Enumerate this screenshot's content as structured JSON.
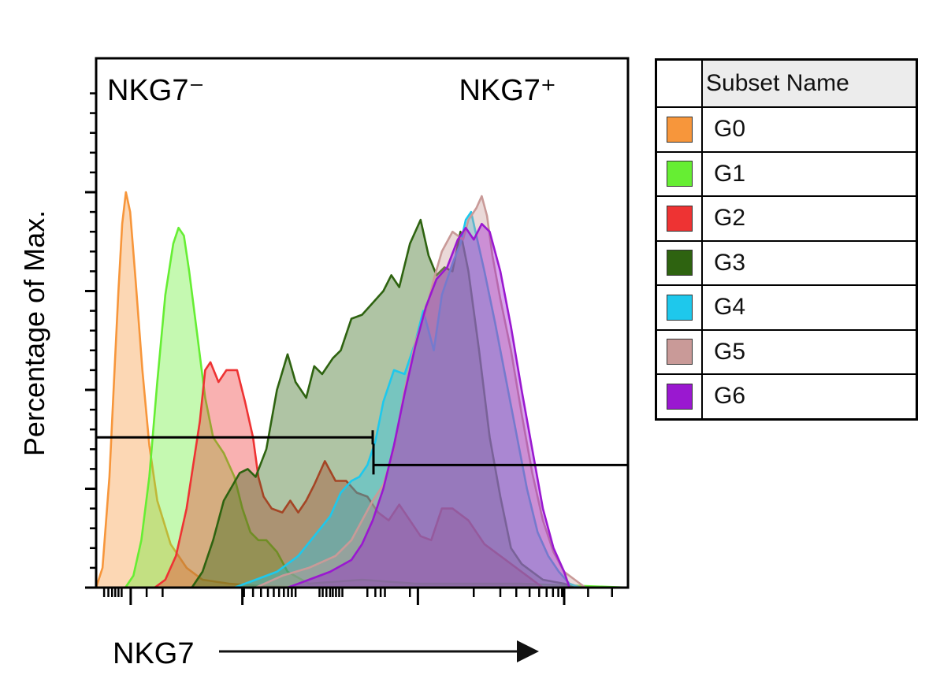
{
  "chart_data": {
    "type": "area",
    "title": "",
    "xlabel": "NKG7",
    "ylabel": "Percentage of Max.",
    "x_scale": "log",
    "xlim": [
      0,
      100
    ],
    "ylim": [
      0,
      100
    ],
    "grid": false,
    "legend_placement": "right",
    "annotations": [
      {
        "text": "NKG7⁻",
        "position": "top-left"
      },
      {
        "text": "NKG7⁺",
        "position": "top-right"
      }
    ],
    "gates": [
      {
        "label": "NKG7⁻",
        "x_range": [
          0,
          52
        ],
        "y": 38
      },
      {
        "label": "NKG7⁺",
        "x_range": [
          52,
          100
        ],
        "y": 31
      }
    ],
    "legend_header": "Subset Name",
    "series": [
      {
        "name": "G0",
        "color": "#f7963b",
        "x": [
          0,
          1.2,
          2.5,
          3.5,
          4.2,
          4.9,
          5.6,
          6.4,
          7.4,
          8.7,
          10,
          11.5,
          14,
          17,
          20,
          25,
          30,
          40,
          60,
          80,
          100
        ],
        "y": [
          0,
          5,
          28,
          56,
          75,
          92,
          100,
          95,
          78,
          55,
          36,
          22,
          11,
          5,
          2,
          1,
          0.5,
          0,
          0,
          0,
          0
        ]
      },
      {
        "name": "G1",
        "color": "#66ee33",
        "x": [
          5.5,
          7,
          8.5,
          10,
          11.5,
          13,
          14.5,
          15.5,
          16.5,
          17.5,
          19,
          20.5,
          22,
          24,
          26,
          27.5,
          29,
          30.5,
          32,
          34,
          36,
          40,
          50,
          60,
          70,
          80,
          100
        ],
        "y": [
          0,
          3,
          12,
          28,
          52,
          74,
          87,
          91,
          89,
          80,
          64,
          48,
          38,
          34,
          28,
          20,
          14,
          12,
          12,
          9,
          4,
          1,
          2,
          1,
          1,
          1,
          0
        ]
      },
      {
        "name": "G2",
        "color": "#ee3333",
        "x": [
          11,
          13,
          15,
          17,
          19.5,
          20.5,
          21.5,
          23,
          24.5,
          26.5,
          28,
          29.5,
          30.5,
          31.5,
          33,
          35,
          36.5,
          38,
          39.5,
          41,
          43,
          45,
          47,
          49,
          51,
          53,
          55,
          57,
          59,
          61,
          63,
          65,
          67,
          70,
          73,
          76,
          80,
          84
        ],
        "y": [
          0,
          2,
          8,
          20,
          42,
          55,
          57,
          52,
          55,
          55,
          47,
          38,
          28,
          23,
          20,
          19,
          22,
          19,
          22,
          26,
          32,
          27,
          27,
          24,
          23,
          19,
          17,
          21,
          17,
          13,
          12,
          20,
          20,
          17,
          11,
          8,
          4,
          0
        ]
      },
      {
        "name": "G3",
        "color": "#2e6310",
        "x": [
          18,
          20,
          22,
          24,
          27,
          28.5,
          30,
          32,
          34,
          36,
          37.5,
          39.5,
          41,
          42.5,
          44.5,
          46,
          48,
          50,
          52,
          54,
          55.5,
          57,
          59,
          61,
          62.5,
          64,
          65.5,
          67,
          68.5,
          70,
          72,
          74,
          76,
          78,
          80,
          84,
          88,
          90
        ],
        "y": [
          0,
          4,
          12,
          22,
          29,
          30,
          28,
          35,
          50,
          59,
          52,
          48,
          56,
          54,
          58,
          60,
          68,
          69,
          72,
          75,
          79,
          76,
          87,
          93,
          84,
          79,
          81,
          80,
          90,
          80,
          60,
          38,
          23,
          10,
          6,
          2,
          1,
          0
        ]
      },
      {
        "name": "G4",
        "color": "#1ec8ec",
        "x": [
          26,
          30,
          34,
          38,
          41,
          44,
          46,
          48,
          49.5,
          51,
          52.5,
          54,
          56,
          58,
          60,
          61.5,
          62.5,
          63.5,
          65,
          67,
          68.5,
          69.5,
          70.5,
          71.5,
          73,
          75,
          77,
          79,
          81,
          83,
          85,
          87,
          89,
          91
        ],
        "y": [
          0,
          2,
          4,
          8,
          13,
          18,
          24,
          27,
          28,
          31,
          37,
          47,
          55,
          54,
          62,
          70,
          65,
          60,
          74,
          82,
          87,
          93,
          95,
          89,
          80,
          67,
          53,
          39,
          25,
          14,
          8,
          4,
          1,
          0
        ]
      },
      {
        "name": "G5",
        "color": "#c99a98",
        "x": [
          30,
          35,
          40,
          45,
          48,
          50,
          52,
          54,
          56,
          58,
          60,
          62,
          63.5,
          65,
          67,
          69,
          70,
          71.5,
          72.5,
          73.5,
          74.5,
          76,
          78,
          80,
          82,
          84,
          86,
          88,
          90,
          92
        ],
        "y": [
          0,
          3,
          5,
          8,
          12,
          17,
          22,
          26,
          35,
          50,
          62,
          70,
          78,
          85,
          90,
          88,
          93,
          96,
          99,
          94,
          84,
          73,
          60,
          44,
          29,
          17,
          9,
          4,
          2,
          0
        ]
      },
      {
        "name": "G6",
        "color": "#9a18d0",
        "x": [
          36,
          40,
          44,
          48,
          50,
          52,
          54,
          56,
          58,
          60,
          62,
          64,
          66,
          68,
          69.5,
          71,
          72.5,
          74,
          76,
          78,
          80,
          82,
          84,
          86,
          88,
          89
        ],
        "y": [
          0,
          2,
          4,
          7,
          11,
          17,
          25,
          36,
          49,
          61,
          71,
          78,
          81,
          88,
          91,
          88,
          92,
          90,
          80,
          66,
          50,
          35,
          20,
          10,
          4,
          0
        ]
      }
    ]
  }
}
